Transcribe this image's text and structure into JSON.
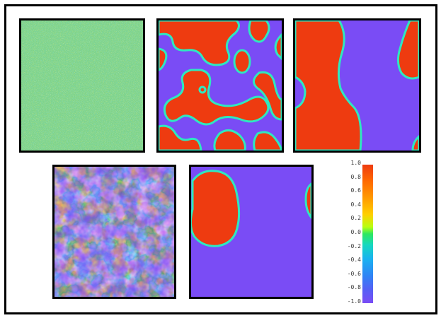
{
  "panels": [
    {
      "id": "noise",
      "icon": "random-noise-field"
    },
    {
      "id": "coarsening-early",
      "icon": "labyrinth-domains"
    },
    {
      "id": "coarsening-late",
      "icon": "large-domains"
    },
    {
      "id": "mixed-field",
      "icon": "mottled-field"
    },
    {
      "id": "single-droplet",
      "icon": "single-domain"
    }
  ],
  "colorbar": {
    "ticks": [
      "1.0",
      "0.8",
      "0.6",
      "0.4",
      "0.2",
      "0.0",
      "-0.2",
      "-0.4",
      "-0.6",
      "-0.8",
      "-1.0"
    ],
    "colors": {
      "max": "#ee3b10",
      "mid": "#2ee860",
      "min": "#7a4cf5"
    }
  }
}
